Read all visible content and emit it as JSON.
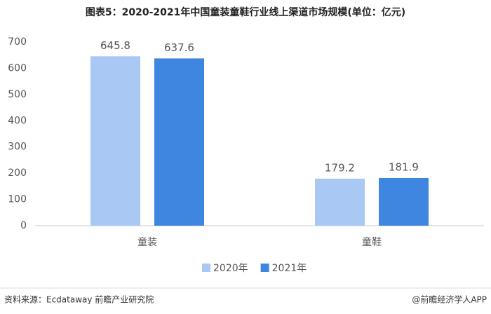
{
  "chart_data": {
    "type": "bar",
    "title": "图表5：2020-2021年中国童装童鞋行业线上渠道市场规模(单位：亿元)",
    "categories": [
      "童装",
      "童鞋"
    ],
    "series": [
      {
        "name": "2020年",
        "color": "#a9c8f3",
        "values": [
          645.8,
          179.2
        ]
      },
      {
        "name": "2021年",
        "color": "#3f86e0",
        "values": [
          637.6,
          181.9
        ]
      }
    ],
    "ylim": [
      0,
      700
    ],
    "yticks": [
      0,
      100,
      200,
      300,
      400,
      500,
      600,
      700
    ],
    "grid": false,
    "legend": "bottom",
    "source": "资料来源：Ecdataway 前瞻产业研究院",
    "credit": "@前瞻经济学人APP"
  }
}
